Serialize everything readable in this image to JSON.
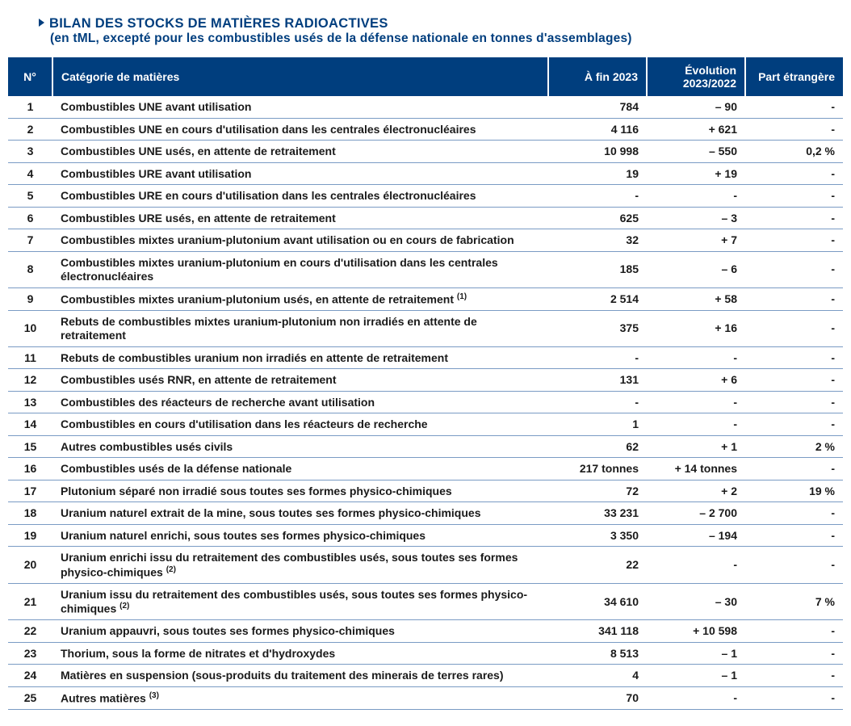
{
  "colors": {
    "brand": "#003e7e",
    "rule": "#7a9bc4",
    "bg": "#ffffff",
    "text": "#1a1a1a"
  },
  "title": {
    "line1": "BILAN DES STOCKS DE MATIÈRES RADIOACTIVES",
    "line2": "(en tML, excepté pour les combustibles usés de la défense nationale en tonnes d'assemblages)"
  },
  "columns": {
    "num": "N°",
    "cat": "Catégorie de matières",
    "fin": "À fin 2023",
    "evo": "Évolution 2023/2022",
    "part": "Part étrangère"
  },
  "rows": [
    {
      "n": "1",
      "cat": "Combustibles UNE avant utilisation",
      "fin": "784",
      "evo": "– 90",
      "part": "-"
    },
    {
      "n": "2",
      "cat": "Combustibles UNE en cours d'utilisation dans les centrales électronucléaires",
      "fin": "4 116",
      "evo": "+ 621",
      "part": "-"
    },
    {
      "n": "3",
      "cat": "Combustibles UNE usés, en attente de retraitement",
      "fin": "10 998",
      "evo": "– 550",
      "part": "0,2 %"
    },
    {
      "n": "4",
      "cat": "Combustibles URE avant utilisation",
      "fin": "19",
      "evo": "+ 19",
      "part": "-"
    },
    {
      "n": "5",
      "cat": "Combustibles URE en cours d'utilisation dans les centrales électronucléaires",
      "fin": "-",
      "evo": "-",
      "part": "-"
    },
    {
      "n": "6",
      "cat": "Combustibles URE usés, en attente de retraitement",
      "fin": "625",
      "evo": "– 3",
      "part": "-"
    },
    {
      "n": "7",
      "cat": "Combustibles mixtes uranium-plutonium avant utilisation ou en cours de fabrication",
      "fin": "32",
      "evo": "+ 7",
      "part": "-"
    },
    {
      "n": "8",
      "cat": "Combustibles mixtes uranium-plutonium en cours d'utilisation dans les centrales électronucléaires",
      "fin": "185",
      "evo": "– 6",
      "part": "-"
    },
    {
      "n": "9",
      "cat": "Combustibles mixtes uranium-plutonium usés, en attente de retraitement",
      "fn": "(1)",
      "fin": "2 514",
      "evo": "+ 58",
      "part": "-"
    },
    {
      "n": "10",
      "cat": "Rebuts de combustibles mixtes uranium-plutonium non irradiés en attente de retraitement",
      "fin": "375",
      "evo": "+ 16",
      "part": "-"
    },
    {
      "n": "11",
      "cat": "Rebuts de combustibles uranium non irradiés en attente de retraitement",
      "fin": "-",
      "evo": "-",
      "part": "-"
    },
    {
      "n": "12",
      "cat": "Combustibles usés RNR, en attente de retraitement",
      "fin": "131",
      "evo": "+ 6",
      "part": "-"
    },
    {
      "n": "13",
      "cat": "Combustibles des réacteurs de recherche avant utilisation",
      "fin": "-",
      "evo": "-",
      "part": "-"
    },
    {
      "n": "14",
      "cat": "Combustibles en cours d'utilisation dans les réacteurs de recherche",
      "fin": "1",
      "evo": "-",
      "part": "-"
    },
    {
      "n": "15",
      "cat": "Autres combustibles usés civils",
      "fin": "62",
      "evo": "+ 1",
      "part": "2 %"
    },
    {
      "n": "16",
      "cat": "Combustibles usés de la défense nationale",
      "fin": "217 tonnes",
      "evo": "+ 14 tonnes",
      "part": "-"
    },
    {
      "n": "17",
      "cat": "Plutonium séparé non irradié sous toutes ses formes physico-chimiques",
      "fin": "72",
      "evo": "+ 2",
      "part": "19 %"
    },
    {
      "n": "18",
      "cat": "Uranium naturel extrait de la mine, sous toutes ses formes physico-chimiques",
      "fin": "33 231",
      "evo": "– 2 700",
      "part": "-"
    },
    {
      "n": "19",
      "cat": "Uranium naturel enrichi, sous toutes ses formes physico-chimiques",
      "fin": "3 350",
      "evo": "– 194",
      "part": "-"
    },
    {
      "n": "20",
      "cat": "Uranium enrichi issu du retraitement des combustibles usés, sous toutes ses formes physico-chimiques",
      "fn": "(2)",
      "fin": "22",
      "evo": "-",
      "part": "-"
    },
    {
      "n": "21",
      "cat": "Uranium issu du retraitement des combustibles usés, sous toutes ses formes physico-chimiques",
      "fn": "(2)",
      "fin": "34 610",
      "evo": "– 30",
      "part": "7 %"
    },
    {
      "n": "22",
      "cat": "Uranium appauvri, sous toutes ses formes physico-chimiques",
      "fin": "341 118",
      "evo": "+ 10 598",
      "part": "-"
    },
    {
      "n": "23",
      "cat": "Thorium, sous la forme de nitrates et d'hydroxydes",
      "fin": "8 513",
      "evo": "– 1",
      "part": "-"
    },
    {
      "n": "24",
      "cat": "Matières en suspension (sous-produits du traitement des minerais de terres rares)",
      "fin": "4",
      "evo": "– 1",
      "part": "-"
    },
    {
      "n": "25",
      "cat": "Autres matières",
      "fn": "(3)",
      "fin": "70",
      "evo": "-",
      "part": "-"
    }
  ]
}
